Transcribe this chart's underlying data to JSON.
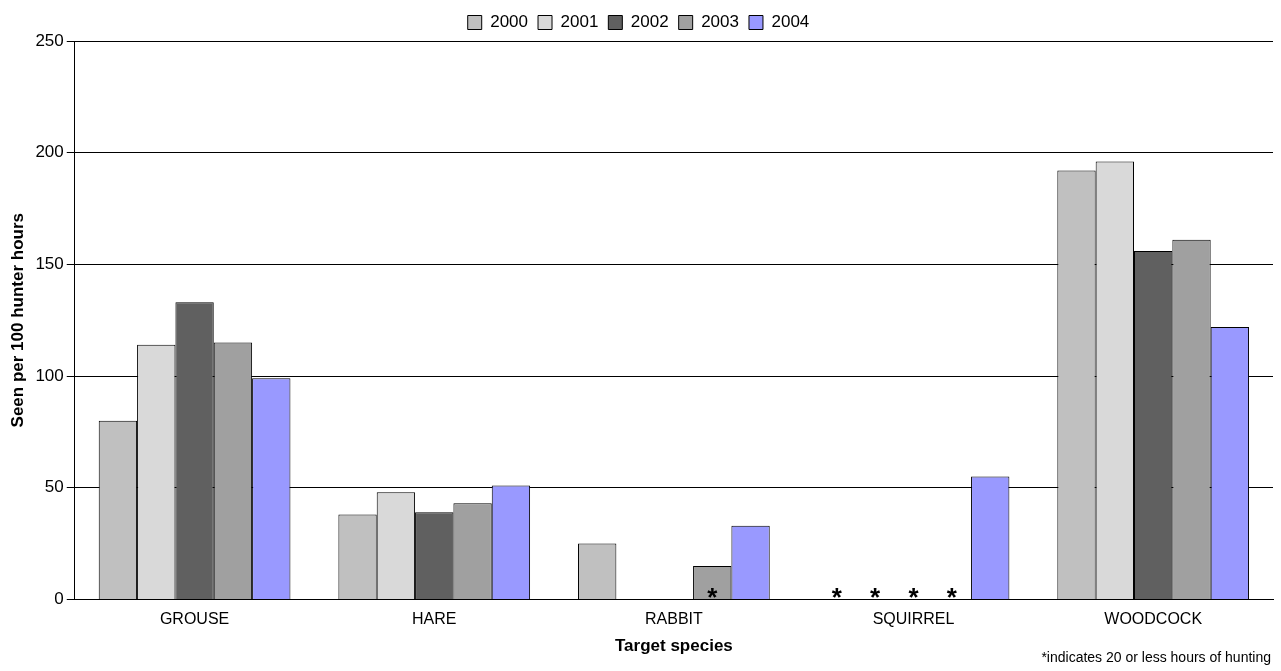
{
  "chart_data": {
    "type": "bar",
    "xlabel": "Target species",
    "ylabel": "Seen per 100 hunter hours",
    "categories": [
      "GROUSE",
      "HARE",
      "RABBIT",
      "SQUIRREL",
      "WOODCOCK"
    ],
    "series": [
      {
        "name": "2000",
        "color": "#c0c0c0",
        "values": [
          80,
          38,
          25,
          null,
          192
        ],
        "value_labels": [
          null,
          null,
          null,
          "*",
          null
        ]
      },
      {
        "name": "2001",
        "color": "#d9d9d9",
        "values": [
          114,
          48,
          null,
          null,
          196
        ],
        "value_labels": [
          null,
          null,
          null,
          "*",
          null
        ]
      },
      {
        "name": "2002",
        "color": "#606060",
        "values": [
          133,
          39,
          null,
          null,
          156
        ],
        "value_labels": [
          null,
          null,
          null,
          "*",
          null
        ]
      },
      {
        "name": "2003",
        "color": "#a0a0a0",
        "values": [
          115,
          43,
          15,
          null,
          161
        ],
        "value_labels": [
          null,
          null,
          "*",
          "*",
          null
        ]
      },
      {
        "name": "2004",
        "color": "#9999ff",
        "values": [
          99,
          51,
          33,
          55,
          122
        ]
      }
    ],
    "ylim": [
      0,
      250
    ],
    "yticks": [
      0,
      50,
      100,
      150,
      200,
      250
    ],
    "grid": "y",
    "legend": "top",
    "annotations": [
      "*indicates 20 or less hours of hunting"
    ]
  }
}
